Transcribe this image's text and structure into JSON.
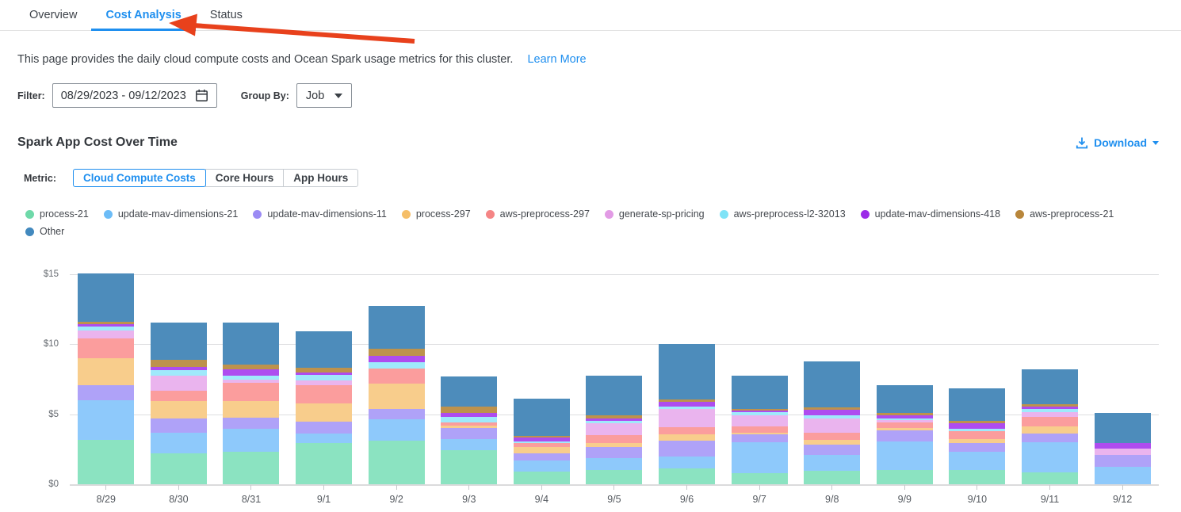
{
  "tabs": [
    {
      "label": "Overview",
      "active": false
    },
    {
      "label": "Cost Analysis",
      "active": true
    },
    {
      "label": "Status",
      "active": false
    }
  ],
  "annotation": {
    "type": "arrow",
    "color": "#E8411C"
  },
  "description": {
    "text": "This page provides the daily cloud compute costs and Ocean Spark usage metrics for this cluster.",
    "link_label": "Learn More"
  },
  "filters": {
    "filter_label": "Filter:",
    "date_range": "08/29/2023  -  09/12/2023",
    "group_by_label": "Group By:",
    "group_by_value": "Job"
  },
  "section": {
    "title": "Spark App Cost Over Time",
    "download_label": "Download"
  },
  "metric": {
    "label": "Metric:",
    "options": [
      {
        "label": "Cloud Compute Costs",
        "active": true
      },
      {
        "label": "Core Hours",
        "active": false
      },
      {
        "label": "App Hours",
        "active": false
      }
    ]
  },
  "colors": {
    "accent_blue": "#1F8FEF",
    "arrow_red": "#E8411C"
  },
  "chart_data": {
    "type": "bar",
    "stacked": true,
    "title": "Spark App Cost Over Time",
    "xlabel": "",
    "ylabel": "Cloud Compute Costs ($)",
    "ylim": [
      0,
      15.5
    ],
    "grid": true,
    "legend_position": "top",
    "y_ticks": [
      {
        "label": "$0",
        "value": 0
      },
      {
        "label": "$5",
        "value": 5
      },
      {
        "label": "$10",
        "value": 10
      },
      {
        "label": "$15",
        "value": 15
      }
    ],
    "categories": [
      "8/29",
      "8/30",
      "8/31",
      "9/1",
      "9/2",
      "9/3",
      "9/4",
      "9/5",
      "9/6",
      "9/7",
      "9/8",
      "9/9",
      "9/10",
      "9/11",
      "9/12"
    ],
    "series": [
      {
        "name": "process-21",
        "color": "#6FD9A9",
        "bar_color": "#8BE3C1",
        "values": [
          3.15,
          2.23,
          2.3,
          2.94,
          3.11,
          2.45,
          0.91,
          1.04,
          1.13,
          0.81,
          0.94,
          1.04,
          1.04,
          0.85,
          0
        ]
      },
      {
        "name": "update-mav-dimensions-21",
        "color": "#6CBCF7",
        "bar_color": "#8EC9FB",
        "values": [
          2.85,
          1.45,
          1.66,
          0.7,
          1.53,
          0.8,
          0.79,
          0.85,
          0.85,
          2.17,
          1.14,
          2.04,
          1.26,
          2.17,
          1.23
        ]
      },
      {
        "name": "update-mav-dimensions-11",
        "color": "#9B8BF4",
        "bar_color": "#AFA2F8",
        "values": [
          1.06,
          1.04,
          0.79,
          0.81,
          0.74,
          0.75,
          0.52,
          0.75,
          1.13,
          0.6,
          0.75,
          0.75,
          0.66,
          0.6,
          0.88
        ]
      },
      {
        "name": "process-297",
        "color": "#F5BE68",
        "bar_color": "#F8CD8C",
        "values": [
          1.94,
          1.22,
          1.21,
          1.32,
          1.79,
          0.21,
          0.46,
          0.28,
          0.47,
          0.1,
          0.32,
          0.19,
          0.29,
          0.53,
          0
        ]
      },
      {
        "name": "aws-preprocess-297",
        "color": "#F58585",
        "bar_color": "#FB9D9D",
        "values": [
          1.43,
          0.72,
          1.3,
          1.29,
          1.09,
          0.22,
          0.25,
          0.57,
          0.48,
          0.43,
          0.53,
          0.38,
          0.52,
          0.66,
          0
        ]
      },
      {
        "name": "generate-sp-pricing",
        "color": "#E29BE5",
        "bar_color": "#EAB4EE",
        "values": [
          0.55,
          1.11,
          0.19,
          0.34,
          0,
          0,
          0,
          0.85,
          1.32,
          0.8,
          1.04,
          0.17,
          0,
          0.32,
          0.44
        ]
      },
      {
        "name": "aws-preprocess-l2-32013",
        "color": "#7FE3F7",
        "bar_color": "#9FE9FB",
        "values": [
          0.28,
          0.4,
          0.32,
          0.39,
          0.46,
          0.38,
          0.13,
          0.19,
          0.19,
          0.22,
          0.22,
          0.15,
          0.19,
          0.25,
          0
        ]
      },
      {
        "name": "update-mav-dimensions-418",
        "color": "#9C2BE8",
        "bar_color": "#AE4CEF",
        "values": [
          0.17,
          0.19,
          0.44,
          0.19,
          0.43,
          0.28,
          0.3,
          0.15,
          0.32,
          0.12,
          0.38,
          0.19,
          0.42,
          0.17,
          0.37
        ]
      },
      {
        "name": "aws-preprocess-21",
        "color": "#B8863B",
        "bar_color": "#BD924C",
        "values": [
          0.17,
          0.55,
          0.37,
          0.36,
          0.53,
          0.48,
          0.11,
          0.26,
          0.19,
          0.13,
          0.19,
          0.18,
          0.15,
          0.15,
          0
        ]
      },
      {
        "name": "Other",
        "color": "#4289BE",
        "bar_color": "#4D8CBB",
        "values": [
          3.46,
          2.64,
          2.97,
          2.6,
          3.06,
          2.13,
          2.66,
          2.83,
          3.92,
          2.36,
          3.26,
          1.97,
          2.32,
          2.51,
          2.17
        ]
      }
    ]
  }
}
